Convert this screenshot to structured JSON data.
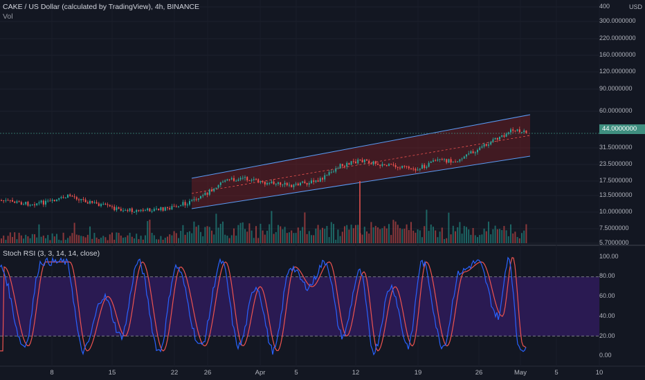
{
  "chart_data": [
    {
      "type": "line",
      "title": "CAKE / US Dollar (calculated by TradingView), 4h, BINANCE",
      "subtitle": "Vol",
      "currency": "USD",
      "yaxis_scale": "log",
      "yaxis_ticks": [
        "400",
        "300.0000000",
        "220.0000000",
        "160.0000000",
        "120.0000000",
        "90.0000000",
        "60.0000000",
        "44.0000000",
        "31.5000000",
        "23.5000000",
        "17.5000000",
        "13.5000000",
        "10.0000000",
        "7.5000000",
        "5.7000000"
      ],
      "current_price_label": "44.0000000",
      "x_ticks": [
        "8",
        "15",
        "22",
        "26",
        "Apr",
        "5",
        "12",
        "19",
        "26",
        "May",
        "5",
        "10"
      ],
      "colors": {
        "up": "#26a69a",
        "down": "#ef5350",
        "channel": "#5b9cf6",
        "channel_fill": "#7a1f24"
      }
    },
    {
      "type": "line",
      "title": "Stoch RSI (3, 3, 14, 14, close)",
      "ylim": [
        0,
        100
      ],
      "yaxis_ticks": [
        "100.00",
        "80.00",
        "60.00",
        "40.00",
        "20.00",
        "0.00"
      ],
      "bands": {
        "upper": 80,
        "lower": 20
      },
      "series": [
        {
          "color": "#2962ff"
        },
        {
          "color": "#ef5350"
        }
      ],
      "colors": {
        "band_fill": "#2a1a52",
        "k": "#2962ff",
        "d": "#ef5350"
      }
    }
  ]
}
